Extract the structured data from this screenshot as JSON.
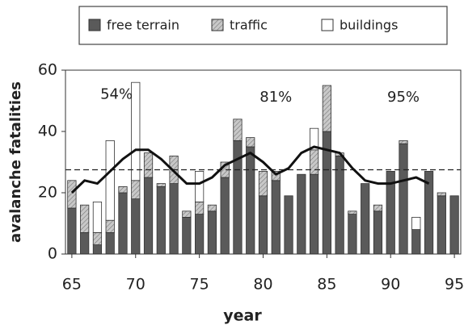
{
  "chart_data": {
    "type": "bar",
    "stacked": true,
    "xlabel": "year",
    "ylabel": "avalanche fatalities",
    "x": [
      65,
      66,
      67,
      68,
      69,
      70,
      71,
      72,
      73,
      74,
      75,
      76,
      77,
      78,
      79,
      80,
      81,
      82,
      83,
      84,
      85,
      86,
      87,
      88,
      89,
      90,
      91,
      92,
      93,
      94,
      95
    ],
    "series": [
      {
        "name": "free terrain",
        "color": "#5a5a5a",
        "values": [
          15,
          7,
          3,
          7,
          20,
          18,
          25,
          22,
          23,
          12,
          13,
          14,
          25,
          37,
          35,
          19,
          24,
          19,
          26,
          26,
          40,
          32,
          13,
          23,
          14,
          27,
          36,
          8,
          27,
          19,
          19
        ]
      },
      {
        "name": "traffic",
        "color": "#b8b8b8",
        "values": [
          9,
          9,
          4,
          4,
          2,
          6,
          8,
          1,
          9,
          2,
          4,
          2,
          5,
          7,
          3,
          8,
          3,
          0,
          0,
          8,
          15,
          1,
          1,
          0,
          2,
          0,
          1,
          0,
          0,
          1,
          0
        ]
      },
      {
        "name": "buildings",
        "color": "#ffffff",
        "values": [
          0,
          0,
          10,
          26,
          0,
          32,
          0,
          0,
          0,
          0,
          10,
          0,
          0,
          0,
          0,
          0,
          0,
          0,
          0,
          7,
          0,
          0,
          0,
          0,
          0,
          0,
          0,
          4,
          0,
          0,
          0
        ]
      }
    ],
    "trend": {
      "x": [
        65,
        66,
        67,
        68,
        69,
        70,
        71,
        72,
        73,
        74,
        75,
        76,
        77,
        78,
        79,
        80,
        81,
        82,
        83,
        84,
        85,
        86,
        87,
        88,
        89,
        90,
        91,
        92,
        93
      ],
      "values": [
        20,
        24,
        23,
        27,
        31,
        34,
        34,
        31,
        27,
        23,
        23,
        25,
        29,
        31,
        33,
        30,
        26,
        28,
        33,
        35,
        34,
        33,
        28,
        24,
        23,
        23,
        24,
        25,
        23
      ]
    },
    "mean": 27.5,
    "annotations": [
      {
        "text": "54%",
        "x": 68.5,
        "y": 52
      },
      {
        "text": "81%",
        "x": 81,
        "y": 51
      },
      {
        "text": "95%",
        "x": 91,
        "y": 51
      }
    ],
    "xlim": [
      64.5,
      95.5
    ],
    "ylim": [
      0,
      60
    ],
    "xticks": [
      65,
      70,
      75,
      80,
      85,
      90,
      95
    ],
    "yticks": [
      0,
      20,
      40,
      60
    ]
  }
}
